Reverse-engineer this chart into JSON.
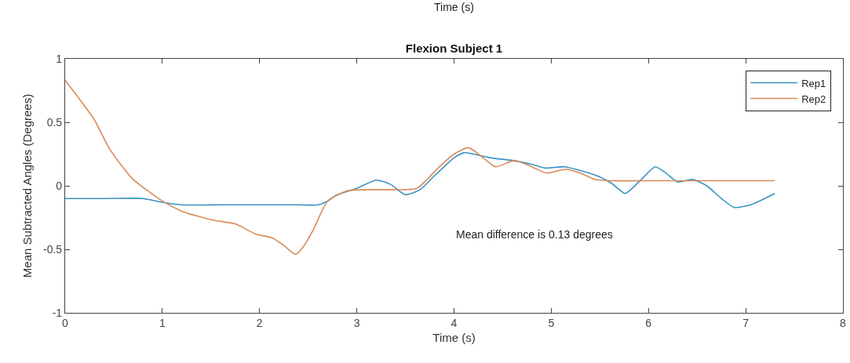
{
  "chart_data": {
    "type": "line",
    "title": "Flexion Subject 1",
    "xlabel": "Time (s)",
    "ylabel": "Mean Subtracted Angles (Degrees)",
    "annotations": [
      "Time (s)",
      "Mean difference is 0.13 degrees"
    ],
    "xlim": [
      0,
      8
    ],
    "xticks": [
      0,
      1,
      2,
      3,
      4,
      5,
      6,
      7,
      8
    ],
    "ylim": [
      -1,
      1
    ],
    "yticks": [
      -1,
      -0.5,
      0,
      0.5,
      1
    ],
    "legend": "top right",
    "line_style": "solid",
    "series": [
      {
        "name": "Rep1",
        "color": "#3a93c3",
        "x": [
          0,
          0.4,
          0.8,
          1.0,
          1.2,
          1.6,
          2.0,
          2.4,
          2.6,
          2.7,
          2.8,
          3.0,
          3.2,
          3.35,
          3.5,
          3.65,
          3.8,
          4.0,
          4.1,
          4.2,
          4.38,
          4.6,
          4.8,
          4.93,
          5.14,
          5.3,
          5.5,
          5.62,
          5.76,
          5.9,
          6.07,
          6.18,
          6.3,
          6.45,
          6.6,
          6.75,
          6.88,
          7.05,
          7.3
        ],
        "values": [
          -0.1,
          -0.1,
          -0.1,
          -0.13,
          -0.15,
          -0.15,
          -0.15,
          -0.15,
          -0.15,
          -0.12,
          -0.07,
          -0.02,
          0.045,
          0.01,
          -0.07,
          -0.03,
          0.08,
          0.22,
          0.26,
          0.25,
          0.22,
          0.2,
          0.17,
          0.14,
          0.15,
          0.12,
          0.07,
          0.02,
          -0.06,
          0.03,
          0.15,
          0.1,
          0.03,
          0.05,
          0.0,
          -0.1,
          -0.17,
          -0.15,
          -0.06
        ]
      },
      {
        "name": "Rep2",
        "color": "#d98a5a",
        "x": [
          0,
          0.15,
          0.3,
          0.45,
          0.55,
          0.7,
          0.85,
          1.0,
          1.2,
          1.52,
          1.75,
          1.96,
          2.13,
          2.25,
          2.37,
          2.45,
          2.55,
          2.7,
          2.9,
          3.2,
          3.5,
          3.62,
          3.85,
          4.0,
          4.15,
          4.3,
          4.43,
          4.62,
          4.8,
          4.95,
          5.15,
          5.3,
          5.45,
          5.6,
          6.0,
          6.5,
          7.0,
          7.3
        ],
        "values": [
          0.83,
          0.68,
          0.52,
          0.3,
          0.19,
          0.05,
          -0.04,
          -0.12,
          -0.2,
          -0.27,
          -0.3,
          -0.38,
          -0.41,
          -0.47,
          -0.54,
          -0.48,
          -0.35,
          -0.12,
          -0.04,
          -0.03,
          -0.03,
          -0.02,
          0.15,
          0.25,
          0.3,
          0.22,
          0.15,
          0.2,
          0.15,
          0.1,
          0.13,
          0.1,
          0.05,
          0.04,
          0.04,
          0.04,
          0.04,
          0.04
        ]
      }
    ]
  }
}
